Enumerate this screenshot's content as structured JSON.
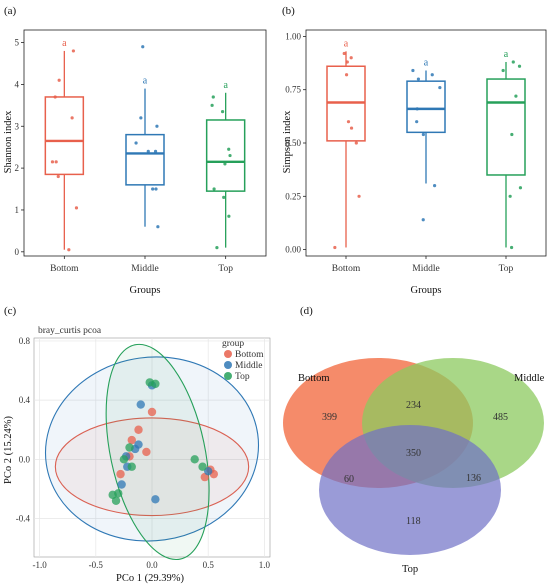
{
  "chart_data": [
    {
      "panel": "(a)",
      "type": "box",
      "ylabel": "Shannon index",
      "xlabel": "Groups",
      "ylim": [
        -0.1,
        5.3
      ],
      "yticks": [
        0,
        1,
        2,
        3,
        4,
        5
      ],
      "groups": [
        {
          "name": "Bottom",
          "color": "#e8604c",
          "letter": "a",
          "box": {
            "min": 0.05,
            "q1": 1.85,
            "median": 2.65,
            "q3": 3.7,
            "max": 4.8
          },
          "points": [
            0.05,
            1.05,
            1.8,
            2.15,
            2.15,
            3.2,
            3.7,
            4.1,
            4.8
          ]
        },
        {
          "name": "Middle",
          "color": "#2f78b5",
          "letter": "a",
          "box": {
            "min": 0.6,
            "q1": 1.6,
            "median": 2.35,
            "q3": 2.8,
            "max": 3.9
          },
          "points": [
            0.6,
            1.5,
            1.5,
            2.4,
            2.4,
            2.6,
            3.0,
            3.2,
            4.9
          ]
        },
        {
          "name": "Top",
          "color": "#26a05a",
          "letter": "a",
          "box": {
            "min": 0.1,
            "q1": 1.45,
            "median": 2.15,
            "q3": 3.15,
            "max": 3.8
          },
          "points": [
            0.1,
            0.85,
            1.3,
            1.5,
            2.1,
            2.3,
            2.45,
            3.35,
            3.5,
            3.7
          ]
        }
      ]
    },
    {
      "panel": "(b)",
      "type": "box",
      "ylabel": "Simpson index",
      "xlabel": "Groups",
      "ylim": [
        -0.03,
        1.03
      ],
      "yticks": [
        "0.00",
        "0.25",
        "0.50",
        "0.75",
        "1.00"
      ],
      "groups": [
        {
          "name": "Bottom",
          "color": "#e8604c",
          "letter": "a",
          "box": {
            "min": 0.01,
            "q1": 0.51,
            "median": 0.69,
            "q3": 0.86,
            "max": 0.93
          },
          "points": [
            0.01,
            0.25,
            0.5,
            0.57,
            0.6,
            0.82,
            0.88,
            0.9,
            0.92
          ]
        },
        {
          "name": "Middle",
          "color": "#2f78b5",
          "letter": "a",
          "box": {
            "min": 0.31,
            "q1": 0.55,
            "median": 0.66,
            "q3": 0.79,
            "max": 0.84
          },
          "points": [
            0.14,
            0.3,
            0.54,
            0.6,
            0.66,
            0.76,
            0.8,
            0.82,
            0.84
          ]
        },
        {
          "name": "Top",
          "color": "#26a05a",
          "letter": "a",
          "box": {
            "min": 0.01,
            "q1": 0.35,
            "median": 0.69,
            "q3": 0.8,
            "max": 0.88
          },
          "points": [
            0.01,
            0.25,
            0.29,
            0.54,
            0.72,
            0.84,
            0.86,
            0.88
          ]
        }
      ]
    },
    {
      "panel": "(c)",
      "type": "scatter",
      "title": "bray_curtis pcoa",
      "xlabel": "PCo 1 (29.39%)",
      "ylabel": "PCo 2 (15.24%)",
      "xlim": [
        -1.05,
        1.05
      ],
      "ylim": [
        -0.66,
        0.82
      ],
      "xticks": [
        "-1.0",
        "-0.5",
        "0.0",
        "0.5",
        "1.0"
      ],
      "yticks": [
        "-0.4",
        "0.0",
        "0.4",
        "0.8"
      ],
      "legend_title": "group",
      "series": [
        {
          "name": "Bottom",
          "color": "#e8604c",
          "points": [
            [
              0.0,
              0.32
            ],
            [
              -0.12,
              0.2
            ],
            [
              -0.18,
              0.13
            ],
            [
              -0.05,
              0.05
            ],
            [
              -0.2,
              0.02
            ],
            [
              -0.28,
              -0.1
            ],
            [
              0.47,
              -0.12
            ],
            [
              0.52,
              -0.07
            ],
            [
              0.55,
              -0.1
            ]
          ]
        },
        {
          "name": "Middle",
          "color": "#2f78b5",
          "points": [
            [
              -0.1,
              0.37
            ],
            [
              -0.12,
              0.1
            ],
            [
              -0.15,
              0.07
            ],
            [
              -0.23,
              0.02
            ],
            [
              -0.22,
              -0.05
            ],
            [
              -0.27,
              -0.17
            ],
            [
              0.5,
              -0.08
            ],
            [
              0.03,
              -0.27
            ],
            [
              0.0,
              0.5
            ]
          ]
        },
        {
          "name": "Top",
          "color": "#26a05a",
          "points": [
            [
              -0.02,
              0.52
            ],
            [
              0.03,
              0.51
            ],
            [
              -0.2,
              0.08
            ],
            [
              -0.25,
              0.0
            ],
            [
              -0.18,
              -0.05
            ],
            [
              -0.3,
              -0.23
            ],
            [
              -0.35,
              -0.24
            ],
            [
              -0.32,
              -0.28
            ],
            [
              0.38,
              0.0
            ],
            [
              0.45,
              -0.05
            ]
          ]
        }
      ],
      "ellipses": [
        {
          "group": "Bottom",
          "cx": 0.0,
          "cy": -0.05,
          "rx": 0.86,
          "ry": 0.33,
          "angle": 0
        },
        {
          "group": "Middle",
          "cx": 0.0,
          "cy": 0.07,
          "rx": 0.95,
          "ry": 0.62,
          "angle": -8
        },
        {
          "group": "Top",
          "cx": 0.05,
          "cy": 0.05,
          "rx": 0.42,
          "ry": 0.74,
          "angle": -12
        }
      ]
    },
    {
      "panel": "(d)",
      "type": "venn",
      "sets": [
        {
          "name": "Bottom",
          "color": "#f47b55"
        },
        {
          "name": "Middle",
          "color": "#8cc95f"
        },
        {
          "name": "Top",
          "color": "#6f70c6"
        }
      ],
      "regions": {
        "Bottom_only": 399,
        "Middle_only": 485,
        "Top_only": 118,
        "Bottom_Middle": 234,
        "Bottom_Top": 60,
        "Middle_Top": 136,
        "All": 350
      }
    }
  ]
}
